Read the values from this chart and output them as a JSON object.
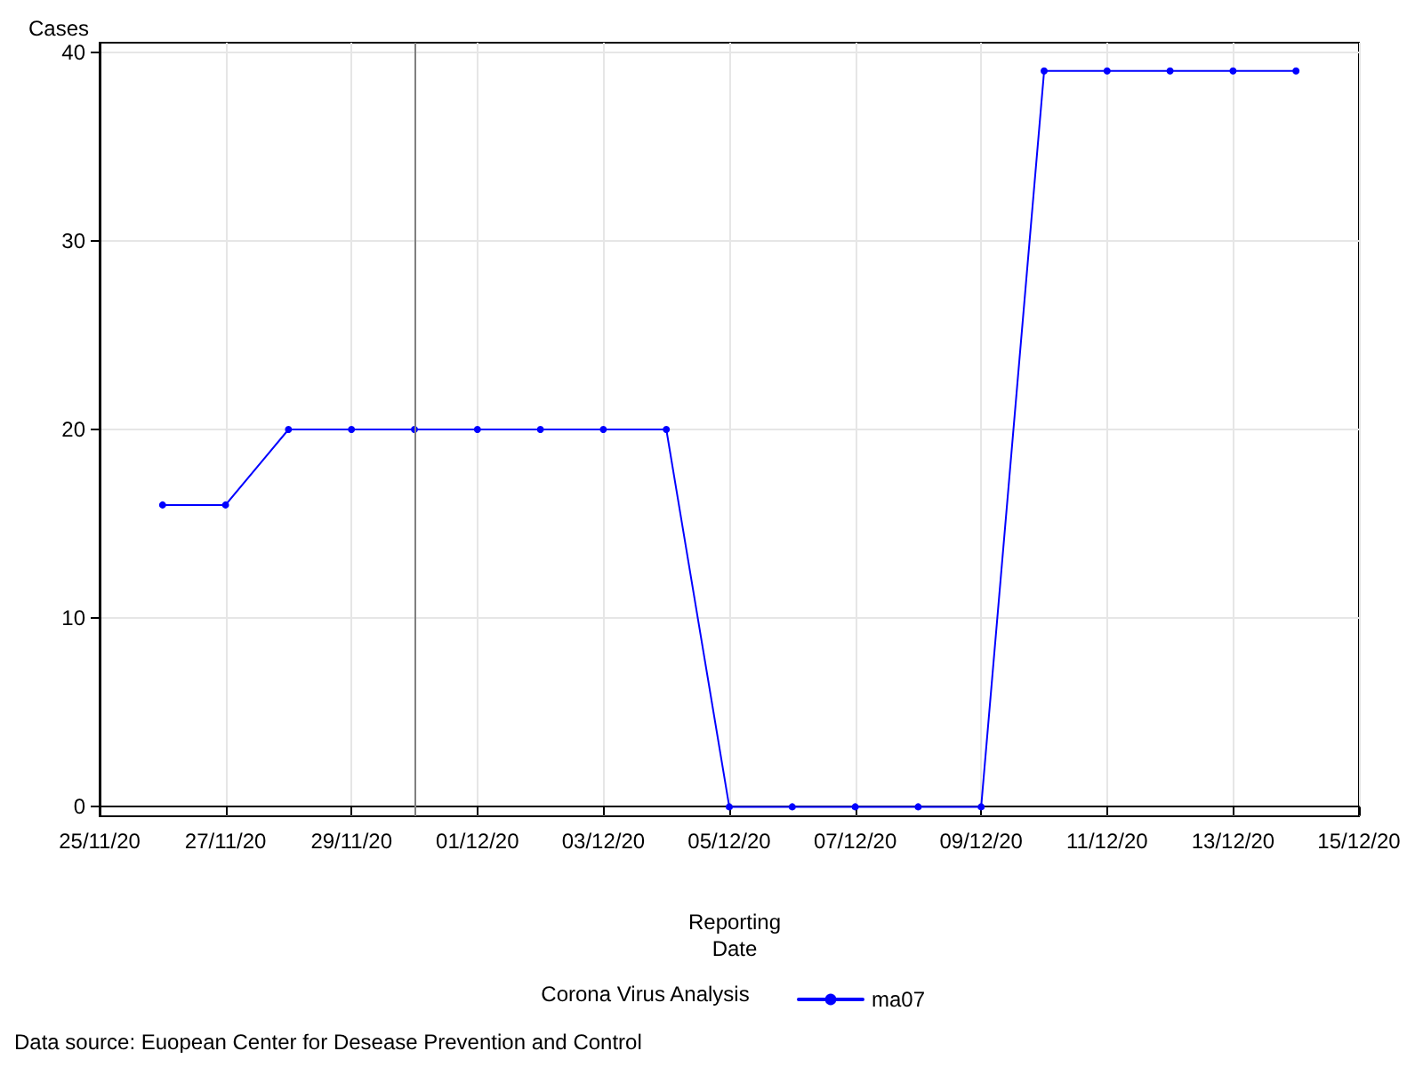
{
  "chart_data": {
    "type": "line",
    "ylabel": "Cases",
    "xlabel": "Reporting\nDate",
    "legend_title": "Corona Virus Analysis",
    "legend": "bottom",
    "grid": true,
    "marker": "circle",
    "line_style": "solid",
    "x": [
      "--11-26",
      "--11-27",
      "--11-28",
      "--11-29",
      "--11-30",
      "--12-01",
      "--12-02",
      "--12-03",
      "--12-04",
      "--12-05",
      "--12-06",
      "--12-07",
      "--12-08",
      "--12-09",
      "--12-10",
      "--12-11",
      "--12-12",
      "--12-13",
      "--12-14"
    ],
    "series": [
      {
        "name": "ma07",
        "color": "#0000ff",
        "values": [
          16,
          16,
          20,
          20,
          20,
          20,
          20,
          20,
          20,
          0,
          0,
          0,
          0,
          0,
          39,
          39,
          39,
          39,
          39
        ]
      }
    ],
    "xlim": [
      "--11-25",
      "--12-15"
    ],
    "xticks": [
      {
        "value": "--11-25",
        "label": "25/11/20"
      },
      {
        "value": "--11-27",
        "label": "27/11/20"
      },
      {
        "value": "--11-29",
        "label": "29/11/20"
      },
      {
        "value": "--12-01",
        "label": "01/12/20"
      },
      {
        "value": "--12-03",
        "label": "03/12/20"
      },
      {
        "value": "--12-05",
        "label": "05/12/20"
      },
      {
        "value": "--12-07",
        "label": "07/12/20"
      },
      {
        "value": "--12-09",
        "label": "09/12/20"
      },
      {
        "value": "--12-11",
        "label": "11/12/20"
      },
      {
        "value": "--12-13",
        "label": "13/12/20"
      },
      {
        "value": "--12-15",
        "label": "15/12/20"
      }
    ],
    "ylim": [
      -0.5,
      40.5
    ],
    "yticks": [
      0,
      10,
      20,
      30,
      40
    ],
    "ref_lines": [
      {
        "axis": "x",
        "value": "--11-30",
        "color": "#808080",
        "line_style": "solid"
      }
    ],
    "annotations": [
      "Data source: Euopean Center for Desease Prevention and Control"
    ]
  }
}
